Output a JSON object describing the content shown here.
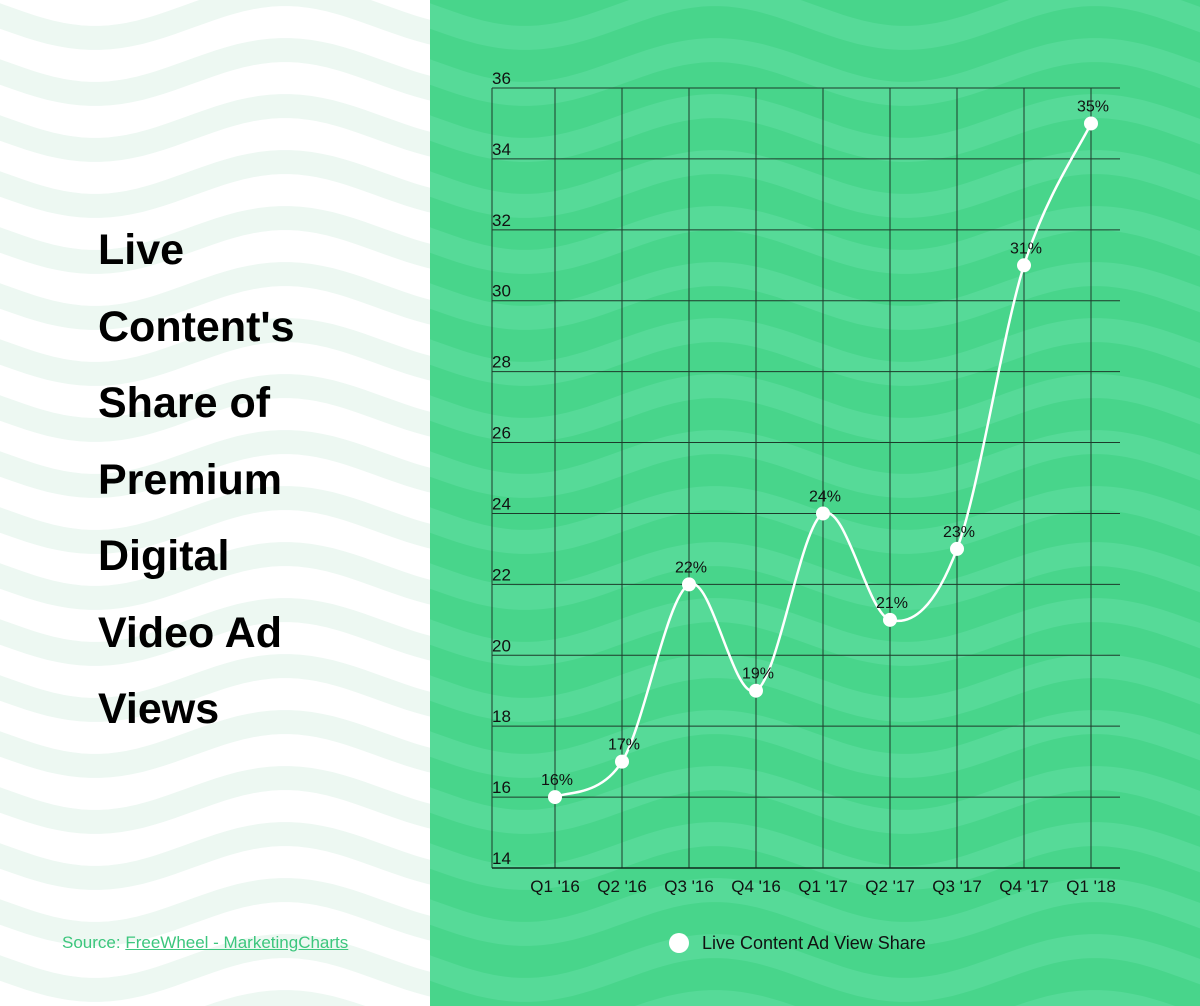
{
  "title_lines": [
    "Live",
    "Content's",
    "Share of",
    "Premium",
    "Digital",
    "Video Ad",
    "Views"
  ],
  "source": {
    "prefix": "Source: ",
    "link_text": "FreeWheel - MarketingCharts"
  },
  "colors": {
    "panel": "#48d58b",
    "line": "#ffffff",
    "grid": "#1d3b2b",
    "source": "#3cc67d"
  },
  "chart_data": {
    "type": "line",
    "categories": [
      "Q1 '16",
      "Q2 '16",
      "Q3 '16",
      "Q4 '16",
      "Q1 '17",
      "Q2 '17",
      "Q3 '17",
      "Q4 '17",
      "Q1 '18"
    ],
    "series": [
      {
        "name": "Live Content Ad View Share",
        "values": [
          16,
          17,
          22,
          19,
          24,
          21,
          23,
          31,
          35
        ]
      }
    ],
    "data_labels": [
      "16%",
      "17%",
      "22%",
      "19%",
      "24%",
      "21%",
      "23%",
      "31%",
      "35%"
    ],
    "y_ticks": [
      14,
      16,
      18,
      20,
      22,
      24,
      26,
      28,
      30,
      32,
      34,
      36
    ],
    "ylim": [
      14,
      36
    ],
    "grid": true,
    "legend_position": "bottom"
  }
}
